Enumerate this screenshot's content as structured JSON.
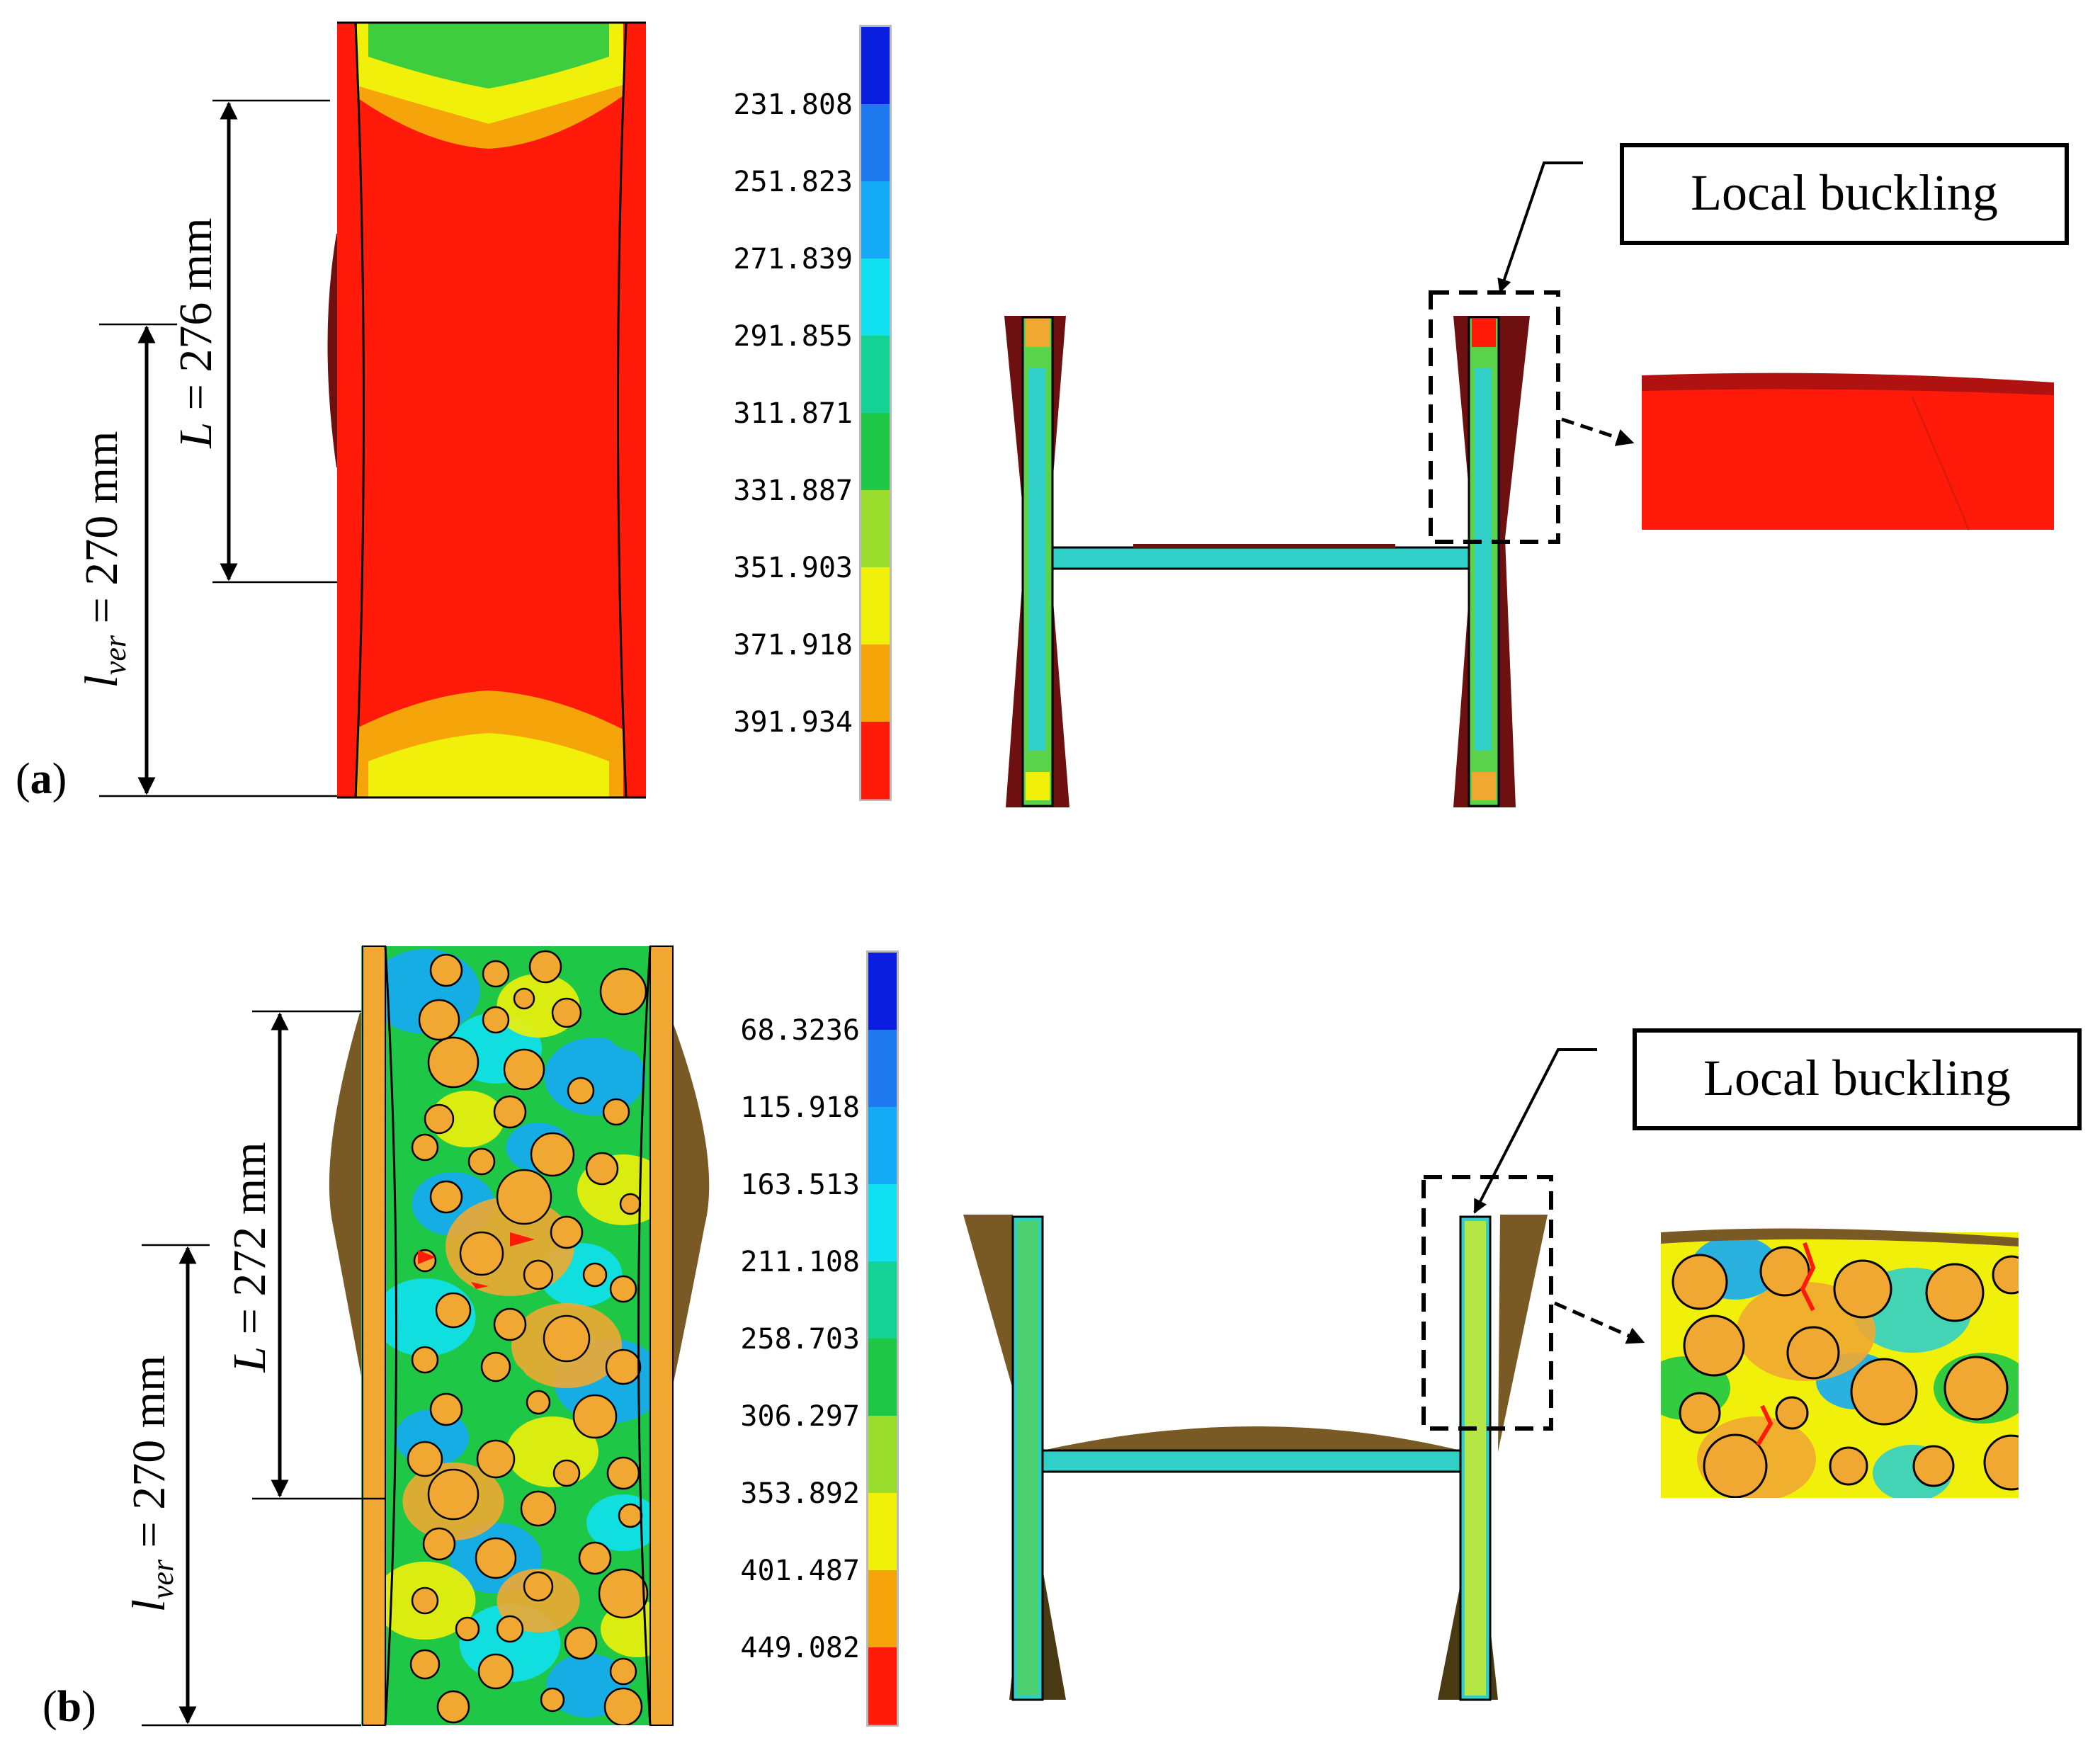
{
  "panel_a": {
    "label": "(a)",
    "label_letter": "a",
    "dim_L": "L = 276 mm",
    "dim_lver_sub": "ver",
    "dim_lver_value": " = 270 mm",
    "legend_values": [
      "231.808",
      "251.823",
      "271.839",
      "291.855",
      "311.871",
      "331.887",
      "351.903",
      "371.918",
      "391.934"
    ],
    "legend_colors": [
      "#0a1ee0",
      "#1e78ee",
      "#14aaf5",
      "#10e0f0",
      "#14d296",
      "#1ec846",
      "#9adc2c",
      "#f0f00a",
      "#f5a50a",
      "#ff1a0a"
    ],
    "callout": "Local buckling"
  },
  "panel_b": {
    "label": "(b)",
    "label_letter": "b",
    "dim_L": "L = 272 mm",
    "dim_lver_sub": "ver",
    "dim_lver_value": " = 270 mm",
    "legend_values": [
      "68.3236",
      "115.918",
      "163.513",
      "211.108",
      "258.703",
      "306.297",
      "353.892",
      "401.487",
      "449.082"
    ],
    "legend_colors": [
      "#0a1ee0",
      "#1e78ee",
      "#14aaf5",
      "#10e0f0",
      "#14d296",
      "#1ec846",
      "#9adc2c",
      "#f0f00a",
      "#f5a50a",
      "#ff1a0a"
    ],
    "callout": "Local buckling"
  },
  "colors": {
    "specimen_a": "#ff1a0a",
    "buckled_a": "#6e1010",
    "buckled_b": "#7a5a24",
    "aggregate": "#f0a832",
    "web": "#30d0c8",
    "green": "#5ad24a",
    "yellow": "#f0f00a"
  }
}
